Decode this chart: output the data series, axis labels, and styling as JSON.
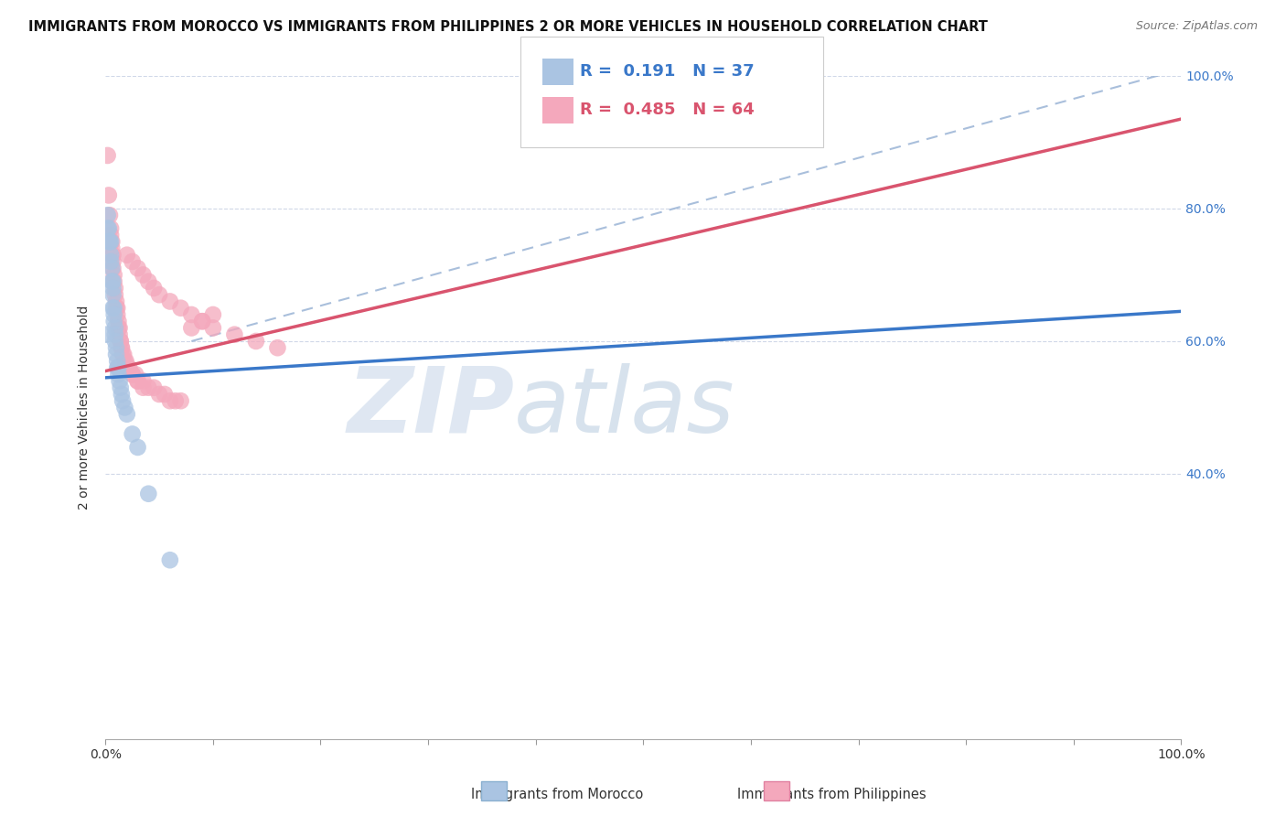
{
  "title": "IMMIGRANTS FROM MOROCCO VS IMMIGRANTS FROM PHILIPPINES 2 OR MORE VEHICLES IN HOUSEHOLD CORRELATION CHART",
  "source": "Source: ZipAtlas.com",
  "ylabel": "2 or more Vehicles in Household",
  "x_min": 0.0,
  "x_max": 1.0,
  "y_min": 0.0,
  "y_max": 1.0,
  "y_ticks": [
    0.4,
    0.6,
    0.8,
    1.0
  ],
  "y_tick_labels_right": [
    "40.0%",
    "60.0%",
    "80.0%",
    "100.0%"
  ],
  "x_ticks": [
    0.0,
    0.1,
    0.2,
    0.3,
    0.4,
    0.5,
    0.6,
    0.7,
    0.8,
    0.9,
    1.0
  ],
  "x_tick_labels": [
    "0.0%",
    "",
    "",
    "",
    "",
    "",
    "",
    "",
    "",
    "",
    "100.0%"
  ],
  "morocco_color": "#aac4e2",
  "philippines_color": "#f4a8bc",
  "morocco_line_color": "#3a78c9",
  "philippines_line_color": "#d9546e",
  "dashed_line_color": "#a0b8d8",
  "watermark_zip": "ZIP",
  "watermark_atlas": "atlas",
  "morocco_R": 0.191,
  "morocco_N": 37,
  "philippines_R": 0.485,
  "philippines_N": 64,
  "background_color": "#ffffff",
  "grid_color": "#d0d8e8",
  "title_fontsize": 10.5,
  "source_fontsize": 9,
  "legend_fontsize": 13,
  "axis_label_fontsize": 10,
  "tick_fontsize": 10,
  "morocco_scatter": [
    [
      0.001,
      0.61
    ],
    [
      0.002,
      0.79
    ],
    [
      0.002,
      0.77
    ],
    [
      0.003,
      0.77
    ],
    [
      0.003,
      0.75
    ],
    [
      0.004,
      0.75
    ],
    [
      0.005,
      0.75
    ],
    [
      0.005,
      0.73
    ],
    [
      0.005,
      0.72
    ],
    [
      0.006,
      0.71
    ],
    [
      0.006,
      0.69
    ],
    [
      0.007,
      0.69
    ],
    [
      0.007,
      0.68
    ],
    [
      0.007,
      0.67
    ],
    [
      0.007,
      0.65
    ],
    [
      0.008,
      0.65
    ],
    [
      0.008,
      0.64
    ],
    [
      0.008,
      0.63
    ],
    [
      0.009,
      0.62
    ],
    [
      0.009,
      0.61
    ],
    [
      0.009,
      0.6
    ],
    [
      0.01,
      0.59
    ],
    [
      0.01,
      0.58
    ],
    [
      0.011,
      0.57
    ],
    [
      0.011,
      0.56
    ],
    [
      0.012,
      0.56
    ],
    [
      0.012,
      0.55
    ],
    [
      0.013,
      0.54
    ],
    [
      0.014,
      0.53
    ],
    [
      0.015,
      0.52
    ],
    [
      0.016,
      0.51
    ],
    [
      0.018,
      0.5
    ],
    [
      0.02,
      0.49
    ],
    [
      0.025,
      0.46
    ],
    [
      0.03,
      0.44
    ],
    [
      0.04,
      0.37
    ],
    [
      0.06,
      0.27
    ]
  ],
  "philippines_scatter": [
    [
      0.002,
      0.88
    ],
    [
      0.003,
      0.82
    ],
    [
      0.004,
      0.79
    ],
    [
      0.005,
      0.77
    ],
    [
      0.005,
      0.76
    ],
    [
      0.006,
      0.75
    ],
    [
      0.006,
      0.74
    ],
    [
      0.007,
      0.73
    ],
    [
      0.007,
      0.72
    ],
    [
      0.007,
      0.71
    ],
    [
      0.008,
      0.7
    ],
    [
      0.008,
      0.69
    ],
    [
      0.009,
      0.68
    ],
    [
      0.009,
      0.67
    ],
    [
      0.01,
      0.66
    ],
    [
      0.01,
      0.65
    ],
    [
      0.011,
      0.65
    ],
    [
      0.011,
      0.64
    ],
    [
      0.012,
      0.63
    ],
    [
      0.012,
      0.62
    ],
    [
      0.013,
      0.62
    ],
    [
      0.013,
      0.61
    ],
    [
      0.014,
      0.6
    ],
    [
      0.014,
      0.6
    ],
    [
      0.015,
      0.59
    ],
    [
      0.015,
      0.59
    ],
    [
      0.016,
      0.58
    ],
    [
      0.017,
      0.58
    ],
    [
      0.018,
      0.57
    ],
    [
      0.019,
      0.57
    ],
    [
      0.02,
      0.56
    ],
    [
      0.022,
      0.56
    ],
    [
      0.025,
      0.55
    ],
    [
      0.025,
      0.55
    ],
    [
      0.028,
      0.55
    ],
    [
      0.03,
      0.54
    ],
    [
      0.03,
      0.54
    ],
    [
      0.035,
      0.54
    ],
    [
      0.035,
      0.53
    ],
    [
      0.04,
      0.53
    ],
    [
      0.045,
      0.53
    ],
    [
      0.05,
      0.52
    ],
    [
      0.055,
      0.52
    ],
    [
      0.06,
      0.51
    ],
    [
      0.065,
      0.51
    ],
    [
      0.07,
      0.51
    ],
    [
      0.08,
      0.62
    ],
    [
      0.09,
      0.63
    ],
    [
      0.1,
      0.64
    ],
    [
      0.02,
      0.73
    ],
    [
      0.025,
      0.72
    ],
    [
      0.03,
      0.71
    ],
    [
      0.035,
      0.7
    ],
    [
      0.04,
      0.69
    ],
    [
      0.045,
      0.68
    ],
    [
      0.05,
      0.67
    ],
    [
      0.06,
      0.66
    ],
    [
      0.07,
      0.65
    ],
    [
      0.08,
      0.64
    ],
    [
      0.09,
      0.63
    ],
    [
      0.1,
      0.62
    ],
    [
      0.12,
      0.61
    ],
    [
      0.14,
      0.6
    ],
    [
      0.16,
      0.59
    ]
  ],
  "morocco_line": [
    [
      0.0,
      0.545
    ],
    [
      1.0,
      0.645
    ]
  ],
  "philippines_line": [
    [
      0.0,
      0.555
    ],
    [
      1.0,
      0.935
    ]
  ],
  "dashed_line": [
    [
      0.08,
      0.6
    ],
    [
      1.0,
      1.01
    ]
  ]
}
